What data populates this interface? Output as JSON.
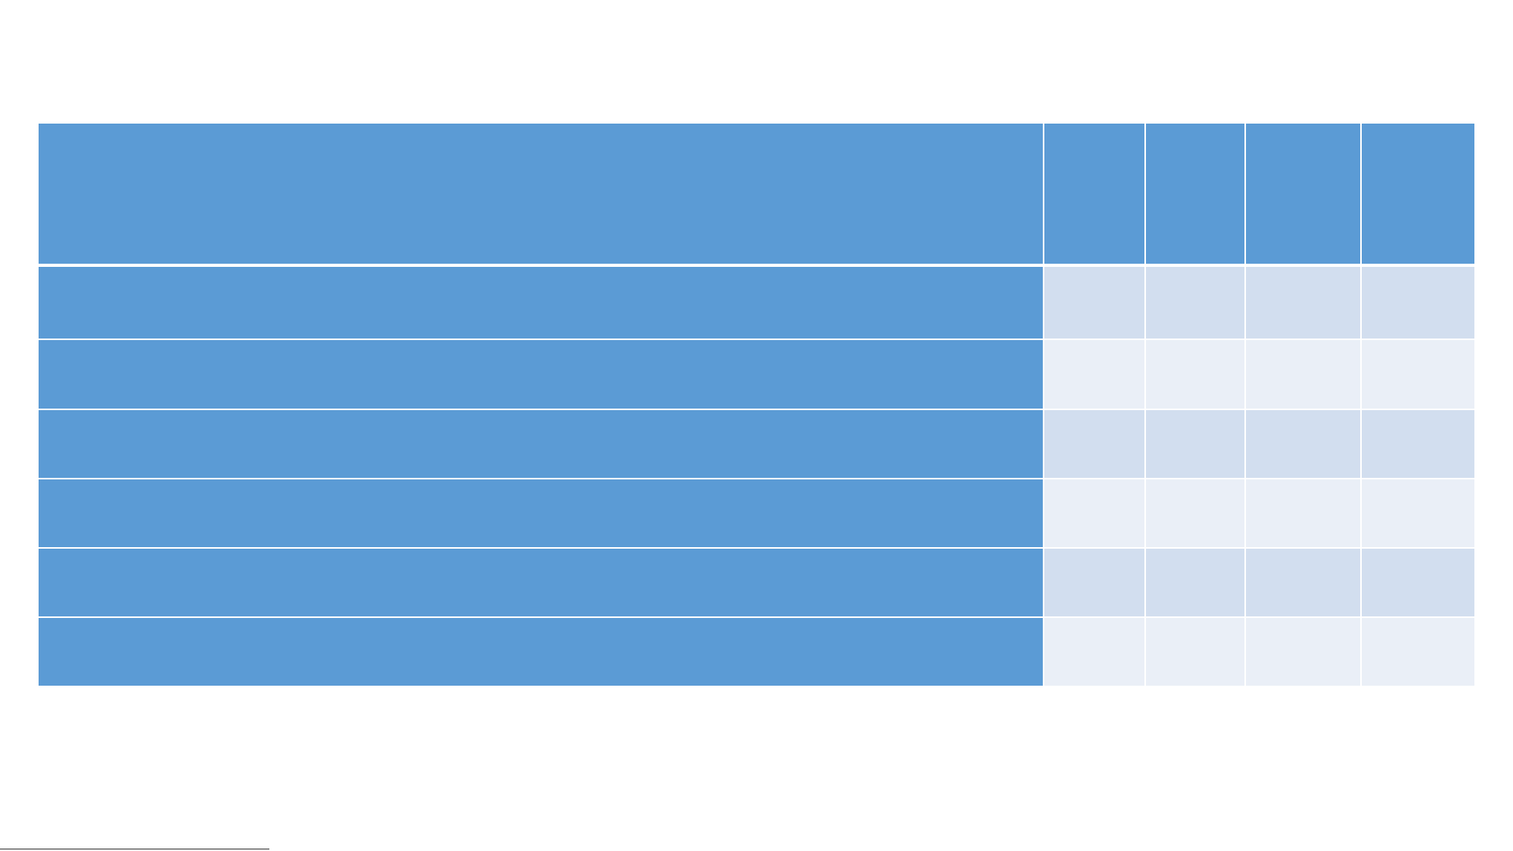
{
  "table": {
    "rows": []
  }
}
